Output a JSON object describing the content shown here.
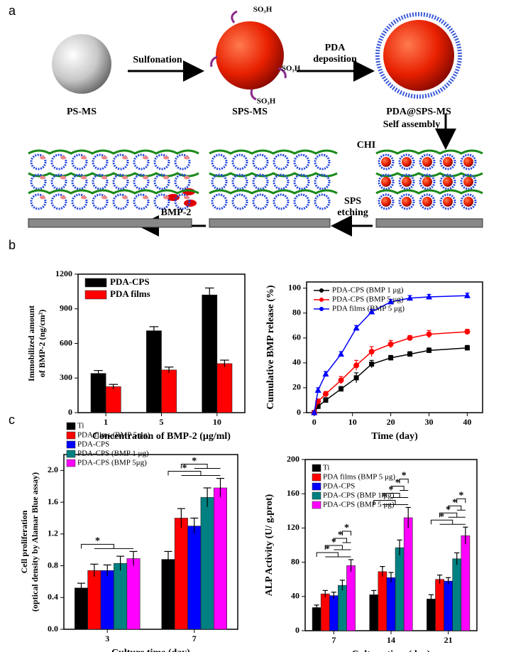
{
  "panel_labels": [
    "a",
    "b",
    "c"
  ],
  "diagram": {
    "ps_ms": "PS-MS",
    "sulfonation": "Sulfonation",
    "sps_ms": "SPS-MS",
    "so3h": [
      "SO₃H",
      "SO₃H",
      "SO₃H"
    ],
    "pda_deposition": [
      "PDA",
      "deposition"
    ],
    "pda_sps_ms": "PDA@SPS-MS",
    "self_assembly": "Self assembly",
    "chi": "CHI",
    "sps_etching": [
      "SPS",
      "etching"
    ],
    "bmp2": "BMP-2"
  },
  "chart_data": [
    {
      "type": "bar",
      "categories": [
        "1",
        "5",
        "10"
      ],
      "series": [
        {
          "name": "PDA-CPS",
          "color": "#000000",
          "values": [
            340,
            710,
            1020
          ],
          "errors": [
            25,
            35,
            60
          ]
        },
        {
          "name": "PDA films",
          "color": "#ff0000",
          "values": [
            225,
            370,
            425
          ],
          "errors": [
            20,
            25,
            30
          ]
        }
      ],
      "ylim": [
        0,
        1200
      ],
      "yticks": [
        0,
        300,
        600,
        900,
        1200
      ],
      "ylabel": [
        "Immobilized amount",
        "of BMP-2 (ng/cm²)"
      ],
      "xlabel": "Concentration of BMP-2 (μg/ml)",
      "legend": "top-left"
    },
    {
      "type": "line",
      "x": [
        0,
        1,
        3,
        7,
        11,
        15,
        20,
        25,
        30,
        40
      ],
      "series": [
        {
          "name": "PDA-CPS (BMP 1 μg)",
          "color": "#000000",
          "marker": "square",
          "values": [
            0,
            5,
            10,
            19,
            28,
            39,
            44,
            47,
            50,
            52
          ],
          "errors": [
            1,
            2,
            2,
            2,
            4,
            3,
            2,
            2,
            2,
            2
          ]
        },
        {
          "name": "PDA-CPS (BMP 5 μg)",
          "color": "#ff0000",
          "marker": "circle",
          "values": [
            0,
            9,
            15,
            26,
            38,
            49,
            55,
            60,
            63,
            65
          ],
          "errors": [
            1,
            2,
            2,
            3,
            4,
            4,
            3,
            2,
            3,
            2
          ]
        },
        {
          "name": "PDA films (BMP 5 μg)",
          "color": "#0000ff",
          "marker": "triangle",
          "values": [
            0,
            18,
            31,
            47,
            68,
            81,
            89,
            92,
            93,
            94
          ],
          "errors": [
            1,
            2,
            2,
            2,
            2,
            2,
            2,
            2,
            2,
            2
          ]
        }
      ],
      "xlim": [
        -2,
        44
      ],
      "xticks": [
        0,
        10,
        20,
        30,
        40
      ],
      "ylim": [
        0,
        105
      ],
      "yticks": [
        0,
        20,
        40,
        60,
        80,
        100
      ],
      "ylabel": [
        "Cumulative BMP release (%)"
      ],
      "xlabel": "Time (day)",
      "legend": "top-left"
    },
    {
      "type": "bar",
      "categories": [
        "3",
        "7"
      ],
      "series": [
        {
          "name": "Ti",
          "color": "#000000",
          "values": [
            0.52,
            0.88
          ],
          "errors": [
            0.06,
            0.1
          ]
        },
        {
          "name": "PDA films (BMP 5 μg)",
          "color": "#ff0000",
          "values": [
            0.74,
            1.4
          ],
          "errors": [
            0.08,
            0.12
          ]
        },
        {
          "name": "PDA-CPS",
          "color": "#0000ff",
          "values": [
            0.74,
            1.3
          ],
          "errors": [
            0.07,
            0.1
          ]
        },
        {
          "name": "PDA-CPS (BMP 1 μg)",
          "color": "#008080",
          "values": [
            0.83,
            1.66
          ],
          "errors": [
            0.09,
            0.12
          ]
        },
        {
          "name": "PDA-CPS (BMP 5μg)",
          "color": "#ff00ff",
          "values": [
            0.89,
            1.78
          ],
          "errors": [
            0.09,
            0.12
          ]
        }
      ],
      "ylim": [
        0,
        2.2
      ],
      "yticks": [
        {
          "value": 0,
          "label": "0.0"
        },
        0.4,
        0.8,
        1.2,
        1.6,
        {
          "value": 2,
          "label": "2.0"
        }
      ],
      "ylabel": [
        "Cell proliferation",
        "(optical density by Alamar Blue assay)"
      ],
      "xlabel": "Culture time (day)",
      "legend": "outside-top-left",
      "annotations": [
        [
          "*"
        ],
        [
          "*",
          "*"
        ]
      ]
    },
    {
      "type": "bar",
      "categories": [
        "7",
        "14",
        "21"
      ],
      "series": [
        {
          "name": "Ti",
          "color": "#000000",
          "values": [
            27,
            42,
            37
          ],
          "errors": [
            3,
            5,
            5
          ]
        },
        {
          "name": "PDA films (BMP 5 μg)",
          "color": "#ff0000",
          "values": [
            43,
            69,
            60
          ],
          "errors": [
            4,
            6,
            5
          ]
        },
        {
          "name": "PDA-CPS",
          "color": "#0000ff",
          "values": [
            41,
            62,
            58
          ],
          "errors": [
            4,
            6,
            4
          ]
        },
        {
          "name": "PDA-CPS (BMP 1 μg)",
          "color": "#008080",
          "values": [
            53,
            97,
            84
          ],
          "errors": [
            6,
            9,
            7
          ]
        },
        {
          "name": "PDA-CPS (BMP 5 μg)",
          "color": "#ff00ff",
          "values": [
            76,
            132,
            111
          ],
          "errors": [
            7,
            12,
            10
          ]
        }
      ],
      "ylim": [
        0,
        200
      ],
      "yticks": [
        0,
        40,
        80,
        120,
        160,
        200
      ],
      "ylabel": [
        "ALP Activity (U/ g.prot)"
      ],
      "xlabel": "Culture time (day)",
      "legend": "top-left",
      "annotations": [
        [
          "*",
          "*",
          "*",
          "*"
        ],
        [
          "*",
          "*",
          "*",
          "*"
        ],
        [
          "*",
          "*",
          "*",
          "*"
        ]
      ]
    }
  ]
}
